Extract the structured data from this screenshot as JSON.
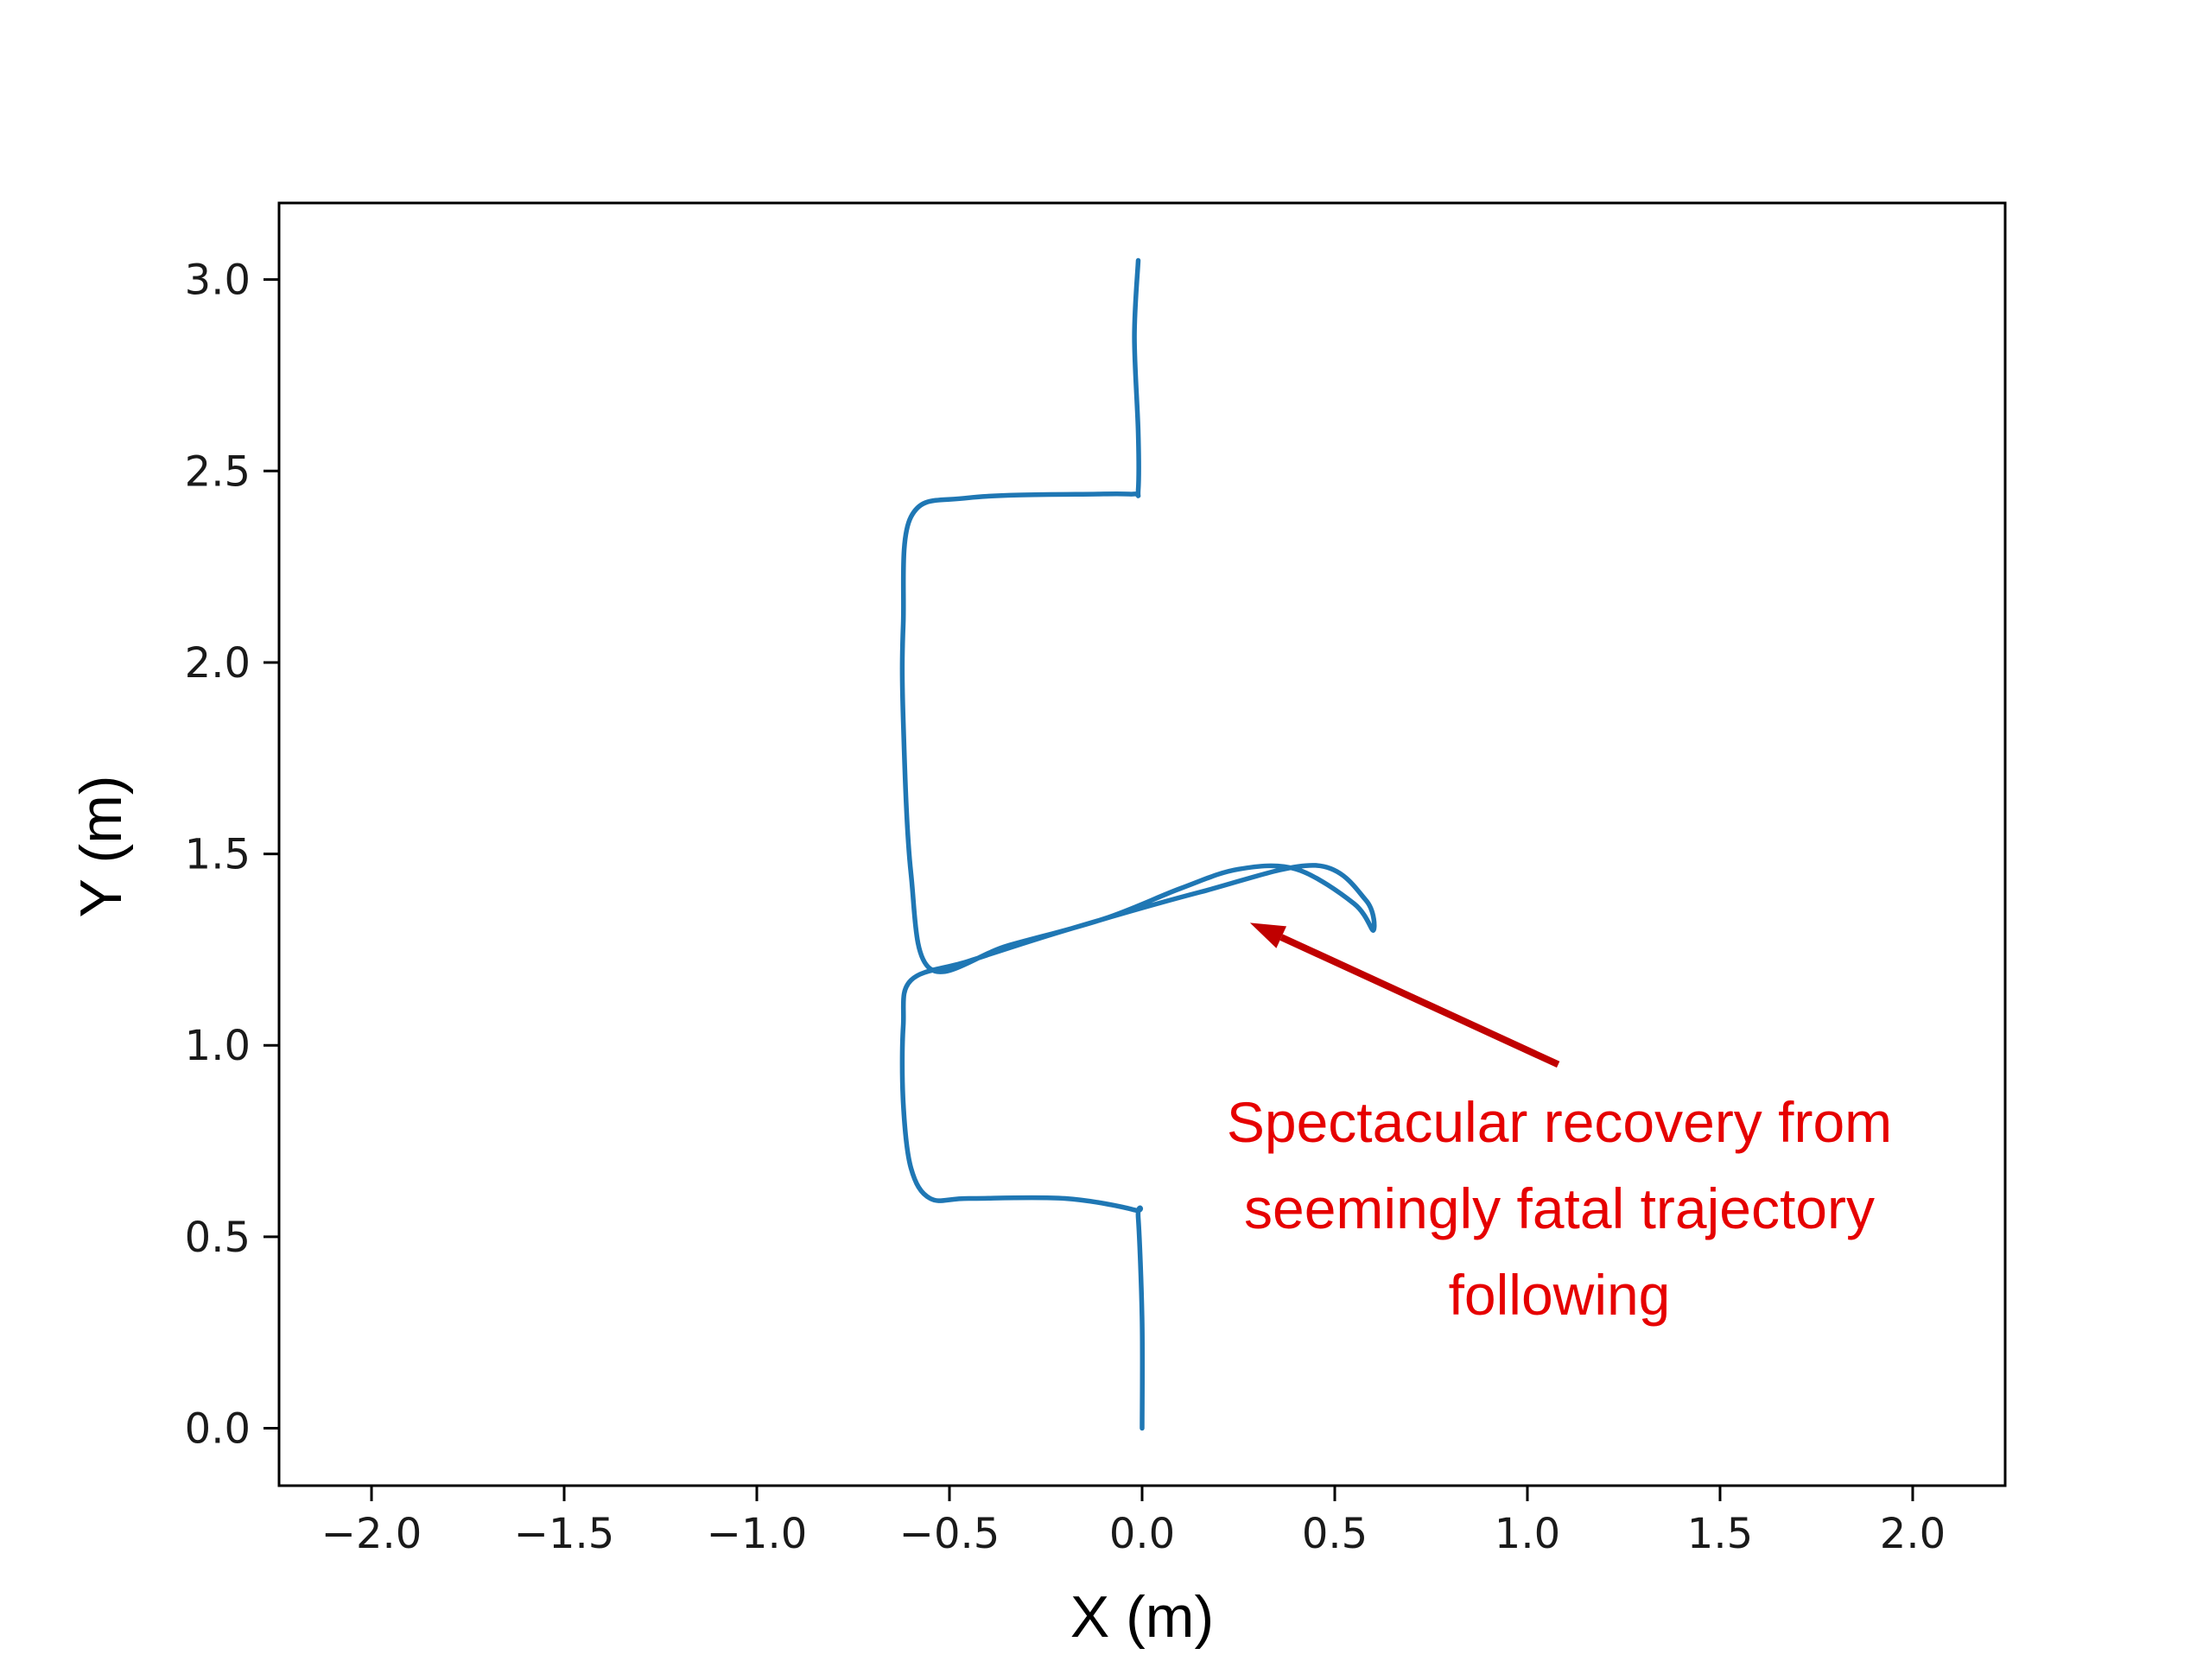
{
  "chart_data": {
    "type": "line",
    "xlabel": "X (m)",
    "ylabel": "Y (m)",
    "xlim": [
      -2.24,
      2.24
    ],
    "ylim": [
      -0.15,
      3.2
    ],
    "xticks": [
      -2.0,
      -1.5,
      -1.0,
      -0.5,
      0.0,
      0.5,
      1.0,
      1.5,
      2.0
    ],
    "xtick_labels": [
      "−2.0",
      "−1.5",
      "−1.0",
      "−0.5",
      "0.0",
      "0.5",
      "1.0",
      "1.5",
      "2.0"
    ],
    "yticks": [
      0.0,
      0.5,
      1.0,
      1.5,
      2.0,
      2.5,
      3.0
    ],
    "ytick_labels": [
      "0.0",
      "0.5",
      "1.0",
      "1.5",
      "2.0",
      "2.5",
      "3.0"
    ],
    "grid": false,
    "series": [
      {
        "color": "#1f77b4",
        "x": [
          0.0,
          0.0,
          -0.01,
          -0.02,
          -0.2,
          -0.45,
          -0.55,
          -0.6,
          -0.62,
          -0.62,
          -0.6,
          -0.45,
          -0.2,
          0.15,
          0.45,
          0.58,
          0.6,
          0.55,
          0.4,
          0.25,
          0.1,
          -0.1,
          -0.35,
          -0.55,
          -0.6,
          -0.62,
          -0.62,
          -0.6,
          -0.45,
          -0.1,
          -0.02,
          -0.01,
          -0.01,
          -0.02,
          -0.01
        ],
        "y": [
          0.0,
          0.28,
          0.55,
          0.57,
          0.6,
          0.6,
          0.6,
          0.68,
          0.85,
          1.05,
          1.17,
          1.22,
          1.3,
          1.4,
          1.47,
          1.38,
          1.3,
          1.37,
          1.46,
          1.46,
          1.41,
          1.33,
          1.26,
          1.2,
          1.45,
          1.85,
          2.1,
          2.38,
          2.43,
          2.44,
          2.44,
          2.45,
          2.6,
          2.85,
          3.05
        ]
      }
    ],
    "annotation": {
      "lines": [
        "Spectacular recovery from",
        "seemingly fatal trajectory",
        "following"
      ],
      "color": "#e60000",
      "arrow_color": "#c00000",
      "arrow_from": [
        1.08,
        0.95
      ],
      "arrow_to": [
        0.28,
        1.32
      ]
    }
  }
}
